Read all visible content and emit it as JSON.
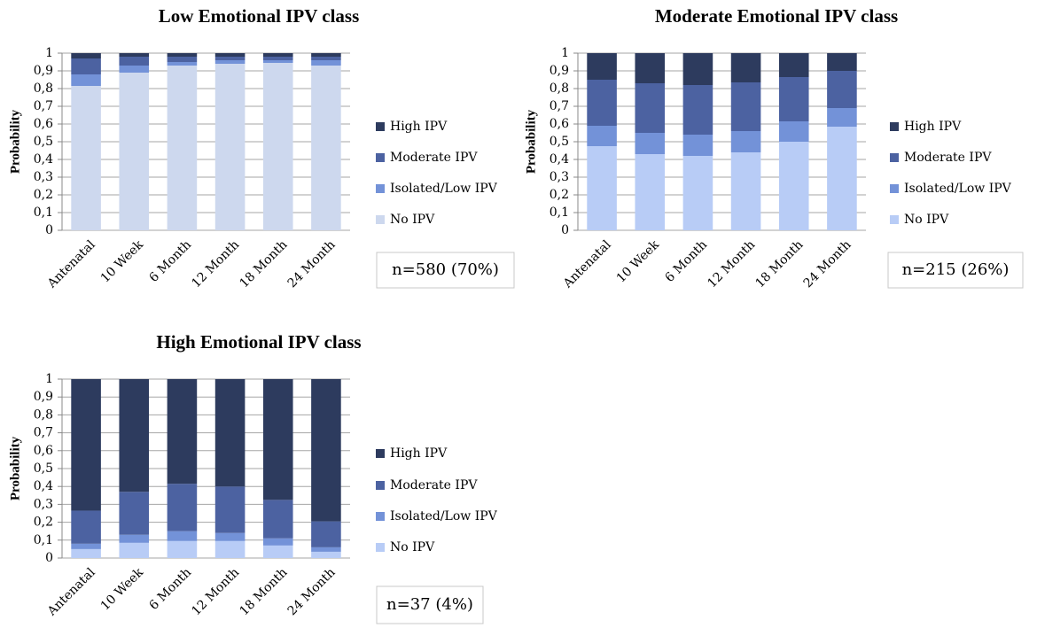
{
  "chart_data": [
    {
      "type": "bar",
      "stacked": true,
      "title": "Low Emotional IPV class",
      "y_label": "Probability",
      "annotation": "n=580 (70%)",
      "categories": [
        "Antenatal",
        "10 Week",
        "6 Month",
        "12 Month",
        "18 Month",
        "24 Month"
      ],
      "series": [
        {
          "name": "No IPV",
          "color": "#cdd8ee",
          "values": [
            0.815,
            0.89,
            0.93,
            0.94,
            0.945,
            0.93
          ]
        },
        {
          "name": "Isolated/Low IPV",
          "color": "#7392d8",
          "values": [
            0.065,
            0.04,
            0.02,
            0.02,
            0.015,
            0.03
          ]
        },
        {
          "name": "Moderate IPV",
          "color": "#4c62a1",
          "values": [
            0.09,
            0.05,
            0.03,
            0.02,
            0.02,
            0.02
          ]
        },
        {
          "name": "High IPV",
          "color": "#2d3b5e",
          "values": [
            0.03,
            0.02,
            0.02,
            0.02,
            0.02,
            0.02
          ]
        }
      ],
      "ylim": [
        0,
        1
      ],
      "yticks": [
        0,
        {
          "value": 0.1,
          "label": "0,1"
        },
        {
          "value": 0.2,
          "label": "0,2"
        },
        {
          "value": 0.3,
          "label": "0,3"
        },
        {
          "value": 0.4,
          "label": "0,4"
        },
        {
          "value": 0.5,
          "label": "0,5"
        },
        {
          "value": 0.6,
          "label": "0,6"
        },
        {
          "value": 0.7,
          "label": "0,7"
        },
        {
          "value": 0.8,
          "label": "0,8"
        },
        {
          "value": 0.9,
          "label": "0,9"
        },
        1
      ],
      "grid": true,
      "legend": "right"
    },
    {
      "type": "bar",
      "stacked": true,
      "title": "Moderate Emotional IPV class",
      "y_label": "Probability",
      "annotation": "n=215 (26%)",
      "categories": [
        "Antenatal",
        "10 Week",
        "6 Month",
        "12 Month",
        "18 Month",
        "24 Month"
      ],
      "series": [
        {
          "name": "No IPV",
          "color": "#b8ccf6",
          "values": [
            0.475,
            0.43,
            0.42,
            0.44,
            0.5,
            0.585
          ]
        },
        {
          "name": "Isolated/Low IPV",
          "color": "#7392d8",
          "values": [
            0.115,
            0.12,
            0.12,
            0.12,
            0.115,
            0.105
          ]
        },
        {
          "name": "Moderate IPV",
          "color": "#4c62a1",
          "values": [
            0.26,
            0.28,
            0.28,
            0.275,
            0.25,
            0.21
          ]
        },
        {
          "name": "High IPV",
          "color": "#2d3b5e",
          "values": [
            0.15,
            0.17,
            0.18,
            0.165,
            0.135,
            0.1
          ]
        }
      ],
      "ylim": [
        0,
        1
      ],
      "yticks": [
        0,
        {
          "value": 0.1,
          "label": "0,1"
        },
        {
          "value": 0.2,
          "label": "0,2"
        },
        {
          "value": 0.3,
          "label": "0,3"
        },
        {
          "value": 0.4,
          "label": "0,4"
        },
        {
          "value": 0.5,
          "label": "0,5"
        },
        {
          "value": 0.6,
          "label": "0,6"
        },
        {
          "value": 0.7,
          "label": "0,7"
        },
        {
          "value": 0.8,
          "label": "0,8"
        },
        {
          "value": 0.9,
          "label": "0,9"
        },
        1
      ],
      "grid": true,
      "legend": "right"
    },
    {
      "type": "bar",
      "stacked": true,
      "title": "High Emotional IPV class",
      "y_label": "Probability",
      "annotation": "n=37 (4%)",
      "categories": [
        "Antenatal",
        "10 Week",
        "6 Month",
        "12 Month",
        "18 Month",
        "24 Month"
      ],
      "series": [
        {
          "name": "No IPV",
          "color": "#b8ccf6",
          "values": [
            0.05,
            0.085,
            0.095,
            0.095,
            0.07,
            0.035
          ]
        },
        {
          "name": "Isolated/Low IPV",
          "color": "#7392d8",
          "values": [
            0.03,
            0.045,
            0.055,
            0.045,
            0.04,
            0.025
          ]
        },
        {
          "name": "Moderate IPV",
          "color": "#4c62a1",
          "values": [
            0.185,
            0.24,
            0.265,
            0.26,
            0.215,
            0.145
          ]
        },
        {
          "name": "High IPV",
          "color": "#2d3b5e",
          "values": [
            0.735,
            0.63,
            0.585,
            0.6,
            0.675,
            0.795
          ]
        }
      ],
      "ylim": [
        0,
        1
      ],
      "yticks": [
        0,
        {
          "value": 0.1,
          "label": "0,1"
        },
        {
          "value": 0.2,
          "label": "0,2"
        },
        {
          "value": 0.3,
          "label": "0,3"
        },
        {
          "value": 0.4,
          "label": "0,4"
        },
        {
          "value": 0.5,
          "label": "0,5"
        },
        {
          "value": 0.6,
          "label": "0,6"
        },
        {
          "value": 0.7,
          "label": "0,7"
        },
        {
          "value": 0.8,
          "label": "0,8"
        },
        {
          "value": 0.9,
          "label": "0,9"
        },
        1
      ],
      "grid": true,
      "legend": "right"
    }
  ]
}
